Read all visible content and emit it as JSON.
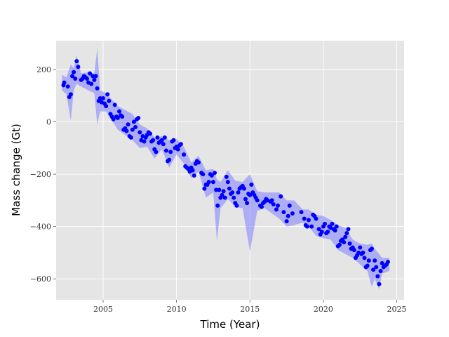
{
  "chart_data": {
    "type": "scatter",
    "xlabel": "Time (Year)",
    "ylabel": "Mass change (Gt)",
    "xlim": [
      2001.8,
      2025.5
    ],
    "ylim": [
      -680,
      310
    ],
    "xticks": [
      2005,
      2010,
      2015,
      2020,
      2025
    ],
    "xtick_labels": [
      "2005",
      "2010",
      "2015",
      "2020",
      "2025"
    ],
    "yticks": [
      200,
      0,
      -200,
      -400,
      -600
    ],
    "ytick_labels": [
      "200",
      "0",
      "−200",
      "−400",
      "−600"
    ],
    "grid": true,
    "background": "#e5e5e5",
    "grid_color": "#ffffff",
    "point_color": "#0000ff",
    "band_color": "#8080ff",
    "band_label": "uncertainty band",
    "series": [
      {
        "points": [
          [
            2002.3,
            140
          ],
          [
            2002.35,
            150
          ],
          [
            2002.6,
            135
          ],
          [
            2002.7,
            95
          ],
          [
            2002.8,
            105
          ],
          [
            2002.9,
            175
          ],
          [
            2003.0,
            190
          ],
          [
            2003.1,
            165
          ],
          [
            2003.2,
            232
          ],
          [
            2003.3,
            210
          ],
          [
            2003.5,
            160
          ],
          [
            2003.6,
            165
          ],
          [
            2003.7,
            175
          ],
          [
            2003.8,
            170
          ],
          [
            2003.9,
            165
          ],
          [
            2004.0,
            150
          ],
          [
            2004.1,
            185
          ],
          [
            2004.2,
            145
          ],
          [
            2004.3,
            175
          ],
          [
            2004.4,
            160
          ],
          [
            2004.5,
            175
          ],
          [
            2004.6,
            128
          ],
          [
            2004.7,
            80
          ],
          [
            2004.8,
            90
          ],
          [
            2004.9,
            75
          ],
          [
            2005.0,
            90
          ],
          [
            2005.1,
            70
          ],
          [
            2005.2,
            60
          ],
          [
            2005.3,
            105
          ],
          [
            2005.4,
            80
          ],
          [
            2005.5,
            30
          ],
          [
            2005.6,
            20
          ],
          [
            2005.7,
            10
          ],
          [
            2005.8,
            65
          ],
          [
            2005.9,
            20
          ],
          [
            2006.0,
            15
          ],
          [
            2006.1,
            40
          ],
          [
            2006.2,
            25
          ],
          [
            2006.3,
            20
          ],
          [
            2006.4,
            -30
          ],
          [
            2006.5,
            -25
          ],
          [
            2006.6,
            -35
          ],
          [
            2006.7,
            -10
          ],
          [
            2006.8,
            -55
          ],
          [
            2006.9,
            -60
          ],
          [
            2007.0,
            -30
          ],
          [
            2007.1,
            0
          ],
          [
            2007.2,
            -20
          ],
          [
            2007.3,
            10
          ],
          [
            2007.4,
            15
          ],
          [
            2007.5,
            -40
          ],
          [
            2007.6,
            -70
          ],
          [
            2007.7,
            -55
          ],
          [
            2007.8,
            -75
          ],
          [
            2007.9,
            -60
          ],
          [
            2008.0,
            -50
          ],
          [
            2008.1,
            -40
          ],
          [
            2008.2,
            -45
          ],
          [
            2008.3,
            -75
          ],
          [
            2008.4,
            -70
          ],
          [
            2008.5,
            -105
          ],
          [
            2008.6,
            -115
          ],
          [
            2008.7,
            -60
          ],
          [
            2008.8,
            -80
          ],
          [
            2008.9,
            -75
          ],
          [
            2009.0,
            -70
          ],
          [
            2009.1,
            -85
          ],
          [
            2009.2,
            -60
          ],
          [
            2009.3,
            -110
          ],
          [
            2009.4,
            -150
          ],
          [
            2009.5,
            -145
          ],
          [
            2009.6,
            -115
          ],
          [
            2009.7,
            -75
          ],
          [
            2009.8,
            -70
          ],
          [
            2009.9,
            -100
          ],
          [
            2010.0,
            -95
          ],
          [
            2010.1,
            -105
          ],
          [
            2010.2,
            -90
          ],
          [
            2010.3,
            -85
          ],
          [
            2010.5,
            -125
          ],
          [
            2010.6,
            -170
          ],
          [
            2010.7,
            -175
          ],
          [
            2010.8,
            -180
          ],
          [
            2010.9,
            -190
          ],
          [
            2011.0,
            -175
          ],
          [
            2011.1,
            -185
          ],
          [
            2011.2,
            -205
          ],
          [
            2011.3,
            -160
          ],
          [
            2011.4,
            -150
          ],
          [
            2011.5,
            -155
          ],
          [
            2011.7,
            -195
          ],
          [
            2011.8,
            -200
          ],
          [
            2011.9,
            -255
          ],
          [
            2012.0,
            -240
          ],
          [
            2012.1,
            -240
          ],
          [
            2012.2,
            -230
          ],
          [
            2012.3,
            -200
          ],
          [
            2012.4,
            -205
          ],
          [
            2012.5,
            -230
          ],
          [
            2012.6,
            -195
          ],
          [
            2012.7,
            -260
          ],
          [
            2012.8,
            -320
          ],
          [
            2012.9,
            -260
          ],
          [
            2013.0,
            -290
          ],
          [
            2013.1,
            -280
          ],
          [
            2013.2,
            -265
          ],
          [
            2013.3,
            -290
          ],
          [
            2013.4,
            -210
          ],
          [
            2013.5,
            -230
          ],
          [
            2013.6,
            -255
          ],
          [
            2013.7,
            -275
          ],
          [
            2013.8,
            -270
          ],
          [
            2013.9,
            -290
          ],
          [
            2014.0,
            -310
          ],
          [
            2014.1,
            -320
          ],
          [
            2014.2,
            -270
          ],
          [
            2014.3,
            -255
          ],
          [
            2014.4,
            -250
          ],
          [
            2014.5,
            -245
          ],
          [
            2014.6,
            -255
          ],
          [
            2014.7,
            -295
          ],
          [
            2014.8,
            -310
          ],
          [
            2014.9,
            -275
          ],
          [
            2015.0,
            -280
          ],
          [
            2015.1,
            -240
          ],
          [
            2015.2,
            -270
          ],
          [
            2015.3,
            -280
          ],
          [
            2015.4,
            -290
          ],
          [
            2015.5,
            -300
          ],
          [
            2015.7,
            -320
          ],
          [
            2015.8,
            -325
          ],
          [
            2015.9,
            -310
          ],
          [
            2016.0,
            -305
          ],
          [
            2016.1,
            -295
          ],
          [
            2016.2,
            -300
          ],
          [
            2016.4,
            -305
          ],
          [
            2016.5,
            -300
          ],
          [
            2016.6,
            -315
          ],
          [
            2016.8,
            -335
          ],
          [
            2016.9,
            -320
          ],
          [
            2017.1,
            -285
          ],
          [
            2017.3,
            -345
          ],
          [
            2017.5,
            -380
          ],
          [
            2017.6,
            -360
          ],
          [
            2017.7,
            -320
          ],
          [
            2017.9,
            -350
          ],
          [
            2018.5,
            -345
          ],
          [
            2018.7,
            -370
          ],
          [
            2018.8,
            -395
          ],
          [
            2018.9,
            -400
          ],
          [
            2019.0,
            -375
          ],
          [
            2019.2,
            -400
          ],
          [
            2019.3,
            -355
          ],
          [
            2019.4,
            -360
          ],
          [
            2019.5,
            -370
          ],
          [
            2019.7,
            -410
          ],
          [
            2019.8,
            -430
          ],
          [
            2019.9,
            -420
          ],
          [
            2020.0,
            -400
          ],
          [
            2020.1,
            -390
          ],
          [
            2020.2,
            -425
          ],
          [
            2020.3,
            -420
          ],
          [
            2020.4,
            -400
          ],
          [
            2020.5,
            -405
          ],
          [
            2020.6,
            -390
          ],
          [
            2020.7,
            -410
          ],
          [
            2020.8,
            -415
          ],
          [
            2020.9,
            -400
          ],
          [
            2021.0,
            -475
          ],
          [
            2021.1,
            -470
          ],
          [
            2021.2,
            -455
          ],
          [
            2021.3,
            -450
          ],
          [
            2021.4,
            -460
          ],
          [
            2021.5,
            -440
          ],
          [
            2021.6,
            -425
          ],
          [
            2021.7,
            -410
          ],
          [
            2021.8,
            -465
          ],
          [
            2021.9,
            -485
          ],
          [
            2022.0,
            -480
          ],
          [
            2022.1,
            -490
          ],
          [
            2022.2,
            -520
          ],
          [
            2022.3,
            -510
          ],
          [
            2022.4,
            -500
          ],
          [
            2022.5,
            -480
          ],
          [
            2022.6,
            -505
          ],
          [
            2022.7,
            -500
          ],
          [
            2022.8,
            -520
          ],
          [
            2022.9,
            -555
          ],
          [
            2023.0,
            -550
          ],
          [
            2023.1,
            -530
          ],
          [
            2023.2,
            -490
          ],
          [
            2023.3,
            -485
          ],
          [
            2023.4,
            -565
          ],
          [
            2023.5,
            -530
          ],
          [
            2023.6,
            -555
          ],
          [
            2023.7,
            -590
          ],
          [
            2023.8,
            -620
          ],
          [
            2023.9,
            -570
          ],
          [
            2024.0,
            -540
          ],
          [
            2024.1,
            -555
          ],
          [
            2024.2,
            -550
          ],
          [
            2024.3,
            -545
          ],
          [
            2024.4,
            -535
          ]
        ]
      }
    ],
    "band": {
      "x": [
        2002.2,
        2002.5,
        2002.8,
        2003.0,
        2003.2,
        2003.5,
        2004.0,
        2004.4,
        2004.6,
        2004.8,
        2005.2,
        2006.0,
        2007.0,
        2007.5,
        2008.0,
        2008.5,
        2009.0,
        2009.5,
        2010.0,
        2010.5,
        2011.0,
        2011.5,
        2012.0,
        2012.5,
        2012.75,
        2013.0,
        2013.5,
        2014.0,
        2014.5,
        2015.0,
        2015.5,
        2016.0,
        2016.5,
        2017.0,
        2017.5,
        2018.0,
        2018.6,
        2019.0,
        2019.5,
        2020.0,
        2020.5,
        2021.0,
        2021.5,
        2022.0,
        2022.5,
        2023.0,
        2023.3,
        2023.5,
        2023.8,
        2024.0,
        2024.5
      ],
      "upper": [
        180,
        170,
        220,
        205,
        255,
        185,
        190,
        185,
        280,
        120,
        110,
        60,
        30,
        -10,
        -25,
        -60,
        -55,
        -70,
        -65,
        -95,
        -155,
        -130,
        -185,
        -180,
        -220,
        -230,
        -185,
        -225,
        -230,
        -200,
        -265,
        -270,
        -270,
        -270,
        -300,
        -300,
        -335,
        -335,
        -355,
        -360,
        -375,
        -395,
        -405,
        -450,
        -465,
        -470,
        -465,
        -485,
        -505,
        -520,
        -520
      ],
      "lower": [
        120,
        105,
        5,
        120,
        145,
        135,
        120,
        110,
        -10,
        40,
        40,
        -30,
        -70,
        -100,
        -95,
        -140,
        -105,
        -175,
        -125,
        -160,
        -215,
        -190,
        -290,
        -270,
        -455,
        -330,
        -295,
        -325,
        -330,
        -495,
        -340,
        -330,
        -350,
        -370,
        -400,
        -395,
        -385,
        -400,
        -435,
        -445,
        -450,
        -490,
        -505,
        -520,
        -545,
        -570,
        -630,
        -600,
        -640,
        -580,
        -570
      ]
    }
  }
}
